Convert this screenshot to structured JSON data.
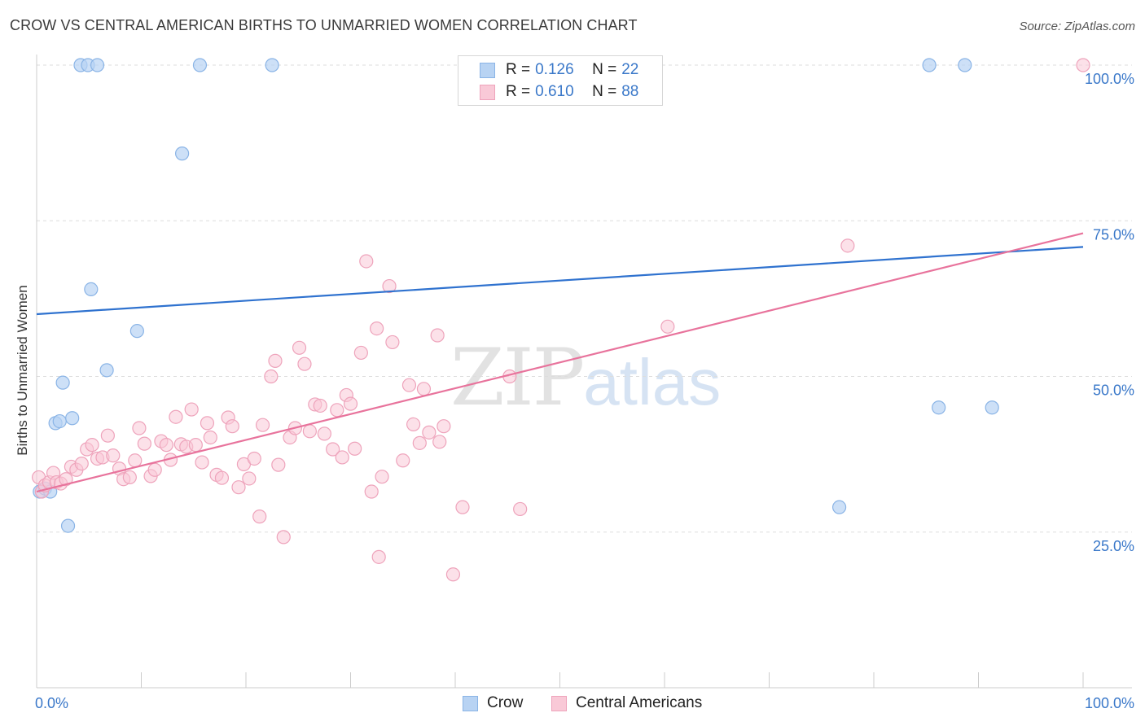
{
  "header": {
    "title": "CROW VS CENTRAL AMERICAN BIRTHS TO UNMARRIED WOMEN CORRELATION CHART",
    "source": "Source: ZipAtlas.com"
  },
  "watermark": {
    "zip": "ZIP",
    "atlas": "atlas"
  },
  "legend": {
    "crow": {
      "r_label": "R =",
      "r_value": "0.126",
      "n_label": "N =",
      "n_value": "22",
      "name": "Crow"
    },
    "central": {
      "r_label": "R =",
      "r_value": "0.610",
      "n_label": "N =",
      "n_value": "88",
      "name": "Central Americans"
    }
  },
  "colors": {
    "crow_fill": "#b8d3f3",
    "crow_stroke": "#8ab4e6",
    "crow_line": "#2f72cf",
    "central_fill": "#f9c9d7",
    "central_stroke": "#eea3bb",
    "central_line": "#e8739c",
    "grid": "#dddddd",
    "tick_text": "#3a78c9"
  },
  "chart_data": {
    "type": "scatter",
    "title": "CROW VS CENTRAL AMERICAN BIRTHS TO UNMARRIED WOMEN CORRELATION CHART",
    "xlabel": "",
    "ylabel": "Births to Unmarried Women",
    "xlim": [
      0,
      100
    ],
    "ylim": [
      0,
      100
    ],
    "x_tick_labels": [
      "0.0%",
      "100.0%"
    ],
    "y_ticks": [
      25,
      50,
      75,
      100
    ],
    "y_tick_labels": [
      "25.0%",
      "50.0%",
      "75.0%",
      "100.0%"
    ],
    "grid": true,
    "series": [
      {
        "name": "Crow",
        "r": 0.126,
        "n": 22,
        "trend": {
          "x": [
            0,
            100
          ],
          "y": [
            60.0,
            70.8
          ]
        },
        "points": [
          [
            0.3,
            31.5
          ],
          [
            0.8,
            32.0
          ],
          [
            1.3,
            31.5
          ],
          [
            1.8,
            42.5
          ],
          [
            2.2,
            42.8
          ],
          [
            2.5,
            49.0
          ],
          [
            3.0,
            26.0
          ],
          [
            3.4,
            43.3
          ],
          [
            4.2,
            100
          ],
          [
            4.9,
            100
          ],
          [
            5.2,
            64.0
          ],
          [
            5.8,
            100
          ],
          [
            6.7,
            51.0
          ],
          [
            9.6,
            57.3
          ],
          [
            13.9,
            85.8
          ],
          [
            15.6,
            100
          ],
          [
            22.5,
            100
          ],
          [
            85.3,
            100
          ],
          [
            86.2,
            45.0
          ],
          [
            88.7,
            100
          ],
          [
            91.3,
            45.0
          ],
          [
            76.7,
            29.0
          ]
        ]
      },
      {
        "name": "Central Americans",
        "r": 0.61,
        "n": 88,
        "trend": {
          "x": [
            0,
            100
          ],
          "y": [
            31.5,
            73.0
          ]
        },
        "points": [
          [
            0.2,
            33.8
          ],
          [
            0.5,
            31.5
          ],
          [
            0.8,
            32.5
          ],
          [
            1.2,
            33.0
          ],
          [
            1.6,
            34.5
          ],
          [
            1.9,
            33.0
          ],
          [
            2.3,
            32.8
          ],
          [
            2.8,
            33.5
          ],
          [
            3.3,
            35.5
          ],
          [
            3.8,
            35.0
          ],
          [
            4.3,
            36.0
          ],
          [
            4.8,
            38.3
          ],
          [
            5.3,
            39.0
          ],
          [
            5.8,
            36.8
          ],
          [
            6.3,
            37.0
          ],
          [
            6.8,
            40.5
          ],
          [
            7.3,
            37.3
          ],
          [
            7.9,
            35.2
          ],
          [
            8.3,
            33.5
          ],
          [
            8.9,
            33.8
          ],
          [
            9.4,
            36.5
          ],
          [
            9.8,
            41.7
          ],
          [
            10.3,
            39.2
          ],
          [
            10.9,
            34.0
          ],
          [
            11.3,
            35.0
          ],
          [
            11.9,
            39.6
          ],
          [
            12.4,
            39.0
          ],
          [
            12.8,
            36.6
          ],
          [
            13.3,
            43.5
          ],
          [
            13.8,
            39.1
          ],
          [
            14.3,
            38.7
          ],
          [
            14.8,
            44.7
          ],
          [
            15.2,
            39.0
          ],
          [
            15.8,
            36.2
          ],
          [
            16.3,
            42.5
          ],
          [
            16.6,
            40.2
          ],
          [
            17.2,
            34.2
          ],
          [
            17.7,
            33.7
          ],
          [
            18.3,
            43.4
          ],
          [
            18.7,
            42.0
          ],
          [
            19.3,
            32.2
          ],
          [
            19.8,
            35.9
          ],
          [
            20.3,
            33.6
          ],
          [
            20.8,
            36.8
          ],
          [
            21.3,
            27.5
          ],
          [
            21.6,
            42.2
          ],
          [
            22.4,
            50.0
          ],
          [
            22.8,
            52.5
          ],
          [
            23.1,
            35.8
          ],
          [
            23.6,
            24.2
          ],
          [
            24.2,
            40.2
          ],
          [
            24.7,
            41.7
          ],
          [
            25.1,
            54.6
          ],
          [
            25.6,
            52.0
          ],
          [
            26.1,
            41.2
          ],
          [
            26.6,
            45.5
          ],
          [
            27.1,
            45.3
          ],
          [
            27.5,
            40.8
          ],
          [
            28.3,
            38.3
          ],
          [
            28.7,
            44.6
          ],
          [
            29.2,
            37.0
          ],
          [
            29.6,
            47.0
          ],
          [
            30.0,
            45.6
          ],
          [
            30.4,
            38.4
          ],
          [
            31.0,
            53.8
          ],
          [
            31.5,
            68.5
          ],
          [
            32.0,
            31.5
          ],
          [
            32.5,
            57.7
          ],
          [
            32.7,
            21.0
          ],
          [
            33.0,
            33.9
          ],
          [
            33.7,
            64.5
          ],
          [
            34.0,
            55.5
          ],
          [
            35.0,
            36.5
          ],
          [
            35.6,
            48.6
          ],
          [
            36.0,
            42.3
          ],
          [
            36.6,
            39.3
          ],
          [
            37.0,
            48.0
          ],
          [
            37.5,
            41.0
          ],
          [
            38.3,
            56.6
          ],
          [
            38.5,
            39.5
          ],
          [
            38.9,
            42.0
          ],
          [
            39.8,
            18.2
          ],
          [
            40.7,
            29.0
          ],
          [
            45.2,
            50.0
          ],
          [
            46.2,
            28.7
          ],
          [
            60.3,
            58.0
          ],
          [
            77.5,
            71.0
          ],
          [
            100,
            100
          ]
        ]
      }
    ]
  }
}
